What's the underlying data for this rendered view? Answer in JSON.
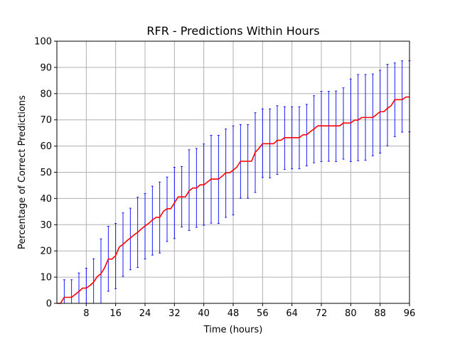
{
  "chart_data": {
    "type": "line",
    "title": "RFR - Predictions Within Hours",
    "xlabel": "Time (hours)",
    "ylabel": "Percentage of Correct Predictions",
    "xlim": [
      0,
      96
    ],
    "ylim": [
      0,
      100
    ],
    "xticks": [
      8,
      16,
      24,
      32,
      40,
      48,
      56,
      64,
      72,
      80,
      88,
      96
    ],
    "yticks": [
      0,
      10,
      20,
      30,
      40,
      50,
      60,
      70,
      80,
      90,
      100
    ],
    "grid": true,
    "colors": {
      "line": "#ff0000",
      "errorbar": "#0000ff",
      "grid": "#b0b0b0"
    },
    "series": [
      {
        "x": [
          0,
          1,
          2,
          3,
          4,
          5,
          6,
          7,
          8,
          9,
          10,
          11,
          12,
          13,
          14,
          15,
          16,
          17,
          18,
          19,
          20,
          21,
          22,
          23,
          24,
          25,
          26,
          27,
          28,
          29,
          30,
          31,
          32,
          33,
          34,
          35,
          36,
          37,
          38,
          39,
          40,
          41,
          42,
          43,
          44,
          45,
          46,
          47,
          48,
          49,
          50,
          51,
          52,
          53,
          54,
          55,
          56,
          57,
          58,
          59,
          60,
          61,
          62,
          63,
          64,
          65,
          66,
          67,
          68,
          69,
          70,
          71,
          72,
          73,
          74,
          75,
          76,
          77,
          78,
          79,
          80,
          81,
          82,
          83,
          84,
          85,
          86,
          87,
          88,
          89,
          90,
          91,
          92,
          93,
          94,
          95,
          96
        ],
        "values": [
          0,
          0,
          2.3,
          2.3,
          2.3,
          3.4,
          4.5,
          5.8,
          5.8,
          6.8,
          8.1,
          10.2,
          11.3,
          13.6,
          16.9,
          16.9,
          18.2,
          21.5,
          22.5,
          23.8,
          24.9,
          26.1,
          27.1,
          28.4,
          29.5,
          30.5,
          31.8,
          32.8,
          32.8,
          35.1,
          36.1,
          36.1,
          38.3,
          40.6,
          40.6,
          40.6,
          42.9,
          44.0,
          44.0,
          45.2,
          45.2,
          46.3,
          47.4,
          47.4,
          47.4,
          48.5,
          49.8,
          49.8,
          50.8,
          52.0,
          54.2,
          54.2,
          54.2,
          54.2,
          57.6,
          59.1,
          60.9,
          60.9,
          60.9,
          60.9,
          62.2,
          62.2,
          63.2,
          63.2,
          63.2,
          63.2,
          63.2,
          64.3,
          64.3,
          65.5,
          66.5,
          67.7,
          67.7,
          67.7,
          67.7,
          67.7,
          67.7,
          67.7,
          68.8,
          68.8,
          68.8,
          69.9,
          69.9,
          70.9,
          70.9,
          70.9,
          70.9,
          72.0,
          73.1,
          73.1,
          74.4,
          75.4,
          77.7,
          77.7,
          77.7,
          78.7,
          78.7
        ]
      }
    ],
    "errorbars": {
      "x": [
        2,
        4,
        6,
        8,
        10,
        12,
        14,
        16,
        18,
        20,
        22,
        24,
        26,
        28,
        30,
        32,
        34,
        36,
        38,
        40,
        42,
        44,
        46,
        48,
        50,
        52,
        54,
        56,
        58,
        60,
        62,
        64,
        66,
        68,
        70,
        72,
        74,
        76,
        78,
        80,
        82,
        84,
        86,
        88,
        90,
        92,
        94,
        96
      ],
      "lower": [
        0,
        0,
        0,
        0,
        0,
        0,
        4.6,
        5.6,
        10.3,
        12.8,
        13.7,
        16.9,
        18.4,
        19.2,
        23.6,
        24.7,
        29.1,
        27.8,
        29.0,
        29.8,
        30.6,
        30.5,
        32.8,
        33.7,
        40.1,
        40.1,
        42.3,
        48.0,
        47.9,
        49.2,
        51.1,
        51.3,
        51.3,
        52.4,
        53.6,
        54.1,
        54.2,
        54.1,
        55.0,
        54.1,
        54.4,
        54.6,
        56.3,
        57.3,
        60.1,
        63.6,
        65.3,
        65.4
      ],
      "upper": [
        9.0,
        9.0,
        11.6,
        13.4,
        17.0,
        24.6,
        29.4,
        30.5,
        34.5,
        36.3,
        40.5,
        41.9,
        44.7,
        46.3,
        48.2,
        51.9,
        52.2,
        58.6,
        59.1,
        60.8,
        64.1,
        64.1,
        66.5,
        67.7,
        68.2,
        68.2,
        72.7,
        74.2,
        74.2,
        75.4,
        75.0,
        75.0,
        75.0,
        75.9,
        79.2,
        80.9,
        80.9,
        81.0,
        82.2,
        85.6,
        87.3,
        87.3,
        87.5,
        88.9,
        91.2,
        91.7,
        92.5,
        92.5
      ]
    }
  }
}
